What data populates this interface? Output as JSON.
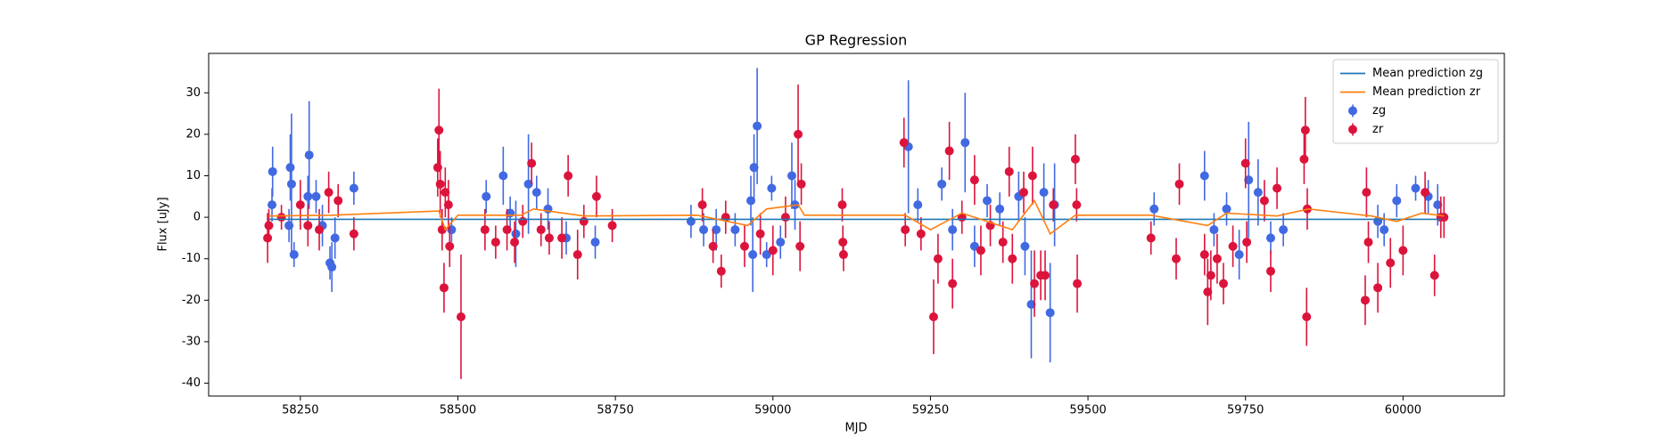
{
  "chart_data": {
    "type": "scatter",
    "title": "GP Regression",
    "x_label": "MJD",
    "y_label": "Flux [uJy]",
    "xlim": [
      58104.5,
      60160.8
    ],
    "ylim": [
      -43.1,
      39.5
    ],
    "xticks": [
      58250,
      58500,
      58750,
      59000,
      59250,
      59500,
      59750,
      60000
    ],
    "yticks": [
      -40,
      -30,
      -20,
      -10,
      0,
      10,
      20,
      30
    ],
    "legend": "upper right",
    "series": [
      {
        "name": "Mean prediction zg",
        "kind": "line",
        "color": "#1f77b4",
        "x": [
          58200,
          58500,
          58800,
          59100,
          59400,
          59700,
          60060
        ],
        "values": [
          -0.5,
          -0.5,
          -0.5,
          -0.5,
          -0.5,
          -0.5,
          -0.5
        ]
      },
      {
        "name": "Mean prediction zr",
        "kind": "line",
        "color": "#ff7f0e",
        "x": [
          58200,
          58300,
          58470,
          58480,
          58500,
          58600,
          58620,
          58700,
          58880,
          58960,
          58990,
          59040,
          59050,
          59210,
          59250,
          59300,
          59380,
          59415,
          59440,
          59480,
          59600,
          59690,
          59720,
          59800,
          59850,
          59950,
          59990,
          60030,
          60065
        ],
        "values": [
          0.3,
          0.5,
          1.5,
          -3,
          0.5,
          0.5,
          2,
          0.3,
          0.5,
          -2,
          2,
          3,
          0.5,
          0.5,
          -3,
          1,
          -3,
          4,
          -4,
          0.5,
          0.5,
          -2,
          1,
          0.3,
          2,
          0.3,
          -1,
          1,
          0.3
        ]
      },
      {
        "name": "zg",
        "kind": "errorbar",
        "color": "#4169e1",
        "x": [
          58206,
          58205,
          58234,
          58236,
          58240,
          58232,
          58264,
          58262,
          58275,
          58285,
          58300,
          58297,
          58305,
          58335,
          58490,
          58545,
          58572,
          58583,
          58592,
          58612,
          58625,
          58643,
          58672,
          58718,
          58870,
          58890,
          58910,
          58940,
          58965,
          58970,
          58975,
          58968,
          58990,
          58998,
          59012,
          59030,
          59035,
          59215,
          59230,
          59268,
          59285,
          59305,
          59320,
          59340,
          59360,
          59390,
          59400,
          59410,
          59430,
          59440,
          59447,
          59605,
          59685,
          59700,
          59720,
          59740,
          59755,
          59770,
          59790,
          59810,
          59960,
          59970,
          59990,
          60020,
          60040,
          60055
        ],
        "values": [
          11,
          3,
          12,
          8,
          -9,
          -2,
          15,
          5,
          5,
          -2,
          -12,
          -11,
          -5,
          7,
          -3,
          5,
          10,
          1,
          -4,
          8,
          6,
          2,
          -5,
          -6,
          -1,
          -3,
          -3,
          -3,
          4,
          12,
          22,
          -9,
          -9,
          7,
          -6,
          10,
          3,
          17,
          3,
          8,
          -3,
          18,
          -7,
          4,
          2,
          5,
          -7,
          -21,
          6,
          -23,
          3,
          2,
          10,
          -3,
          2,
          -9,
          9,
          6,
          -5,
          -3,
          -1,
          -3,
          4,
          7,
          5,
          3
        ],
        "errors": [
          6,
          4,
          8,
          17,
          3,
          4,
          13,
          5,
          4,
          5,
          6,
          4,
          5,
          4,
          3,
          4,
          7,
          4,
          8,
          12,
          4,
          5,
          4,
          4,
          4,
          4,
          5,
          4,
          6,
          8,
          14,
          9,
          3,
          3,
          4,
          8,
          6,
          16,
          4,
          4,
          5,
          12,
          5,
          4,
          4,
          6,
          7,
          13,
          7,
          12,
          10,
          4,
          6,
          4,
          4,
          6,
          14,
          8,
          4,
          4,
          4,
          4,
          4,
          3,
          4,
          5
        ]
      },
      {
        "name": "zr",
        "kind": "errorbar",
        "color": "#dc143c",
        "x": [
          58200,
          58198,
          58220,
          58250,
          58262,
          58280,
          58295,
          58310,
          58335,
          58468,
          58470,
          58472,
          58475,
          58478,
          58480,
          58485,
          58487,
          58505,
          58543,
          58560,
          58578,
          58590,
          58603,
          58617,
          58632,
          58645,
          58665,
          58675,
          58690,
          58700,
          58720,
          58745,
          58888,
          58905,
          58918,
          58925,
          58955,
          58980,
          59000,
          59020,
          59040,
          59045,
          59043,
          59110,
          59111,
          59112,
          59208,
          59210,
          59235,
          59255,
          59262,
          59280,
          59285,
          59300,
          59320,
          59330,
          59345,
          59365,
          59375,
          59380,
          59398,
          59412,
          59415,
          59425,
          59432,
          59445,
          59480,
          59482,
          59483,
          59600,
          59640,
          59645,
          59685,
          59690,
          59695,
          59705,
          59715,
          59730,
          59750,
          59752,
          59780,
          59790,
          59800,
          59845,
          59843,
          59847,
          59848,
          59940,
          59942,
          59945,
          59960,
          59980,
          60000,
          60035,
          60050,
          60060,
          60065
        ],
        "values": [
          -2,
          -5,
          0,
          3,
          -2,
          -3,
          6,
          4,
          -4,
          12,
          21,
          8,
          -3,
          -17,
          6,
          3,
          -7,
          -24,
          -3,
          -6,
          -3,
          -6,
          -1,
          13,
          -3,
          -5,
          -5,
          10,
          -9,
          -1,
          5,
          -2,
          3,
          -7,
          -13,
          0,
          -7,
          -4,
          -8,
          0,
          20,
          8,
          -7,
          3,
          -6,
          -9,
          18,
          -3,
          -4,
          -24,
          -10,
          16,
          -16,
          0,
          9,
          -8,
          -2,
          -6,
          11,
          -10,
          6,
          10,
          -16,
          -14,
          -14,
          3,
          14,
          3,
          -16,
          -5,
          -10,
          8,
          -9,
          -18,
          -14,
          -10,
          -16,
          -7,
          13,
          -6,
          4,
          -13,
          7,
          21,
          14,
          -24,
          2,
          -20,
          6,
          -6,
          -17,
          -11,
          -8,
          6,
          -14,
          0,
          0
        ],
        "errors": [
          4,
          6,
          3,
          6,
          5,
          5,
          5,
          4,
          4,
          7,
          10,
          8,
          5,
          6,
          6,
          6,
          5,
          15,
          5,
          4,
          5,
          5,
          4,
          5,
          4,
          4,
          5,
          5,
          6,
          4,
          5,
          4,
          4,
          4,
          4,
          4,
          5,
          5,
          6,
          5,
          12,
          5,
          6,
          4,
          4,
          4,
          6,
          4,
          4,
          9,
          6,
          7,
          6,
          4,
          6,
          6,
          5,
          5,
          6,
          6,
          5,
          7,
          8,
          6,
          6,
          4,
          6,
          4,
          7,
          4,
          5,
          5,
          5,
          8,
          6,
          6,
          5,
          5,
          6,
          5,
          5,
          5,
          5,
          8,
          6,
          7,
          5,
          6,
          6,
          5,
          6,
          6,
          6,
          5,
          5,
          5,
          5
        ]
      }
    ]
  }
}
